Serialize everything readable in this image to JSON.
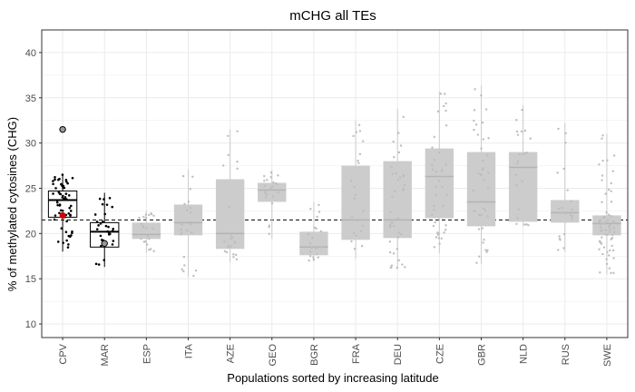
{
  "chart_data": {
    "type": "box",
    "title": "mCHG all TEs",
    "xlabel": "Populations sorted by increasing latitude",
    "ylabel": "% of methylated cytosines (CHG)",
    "ylim": [
      8.5,
      42.5
    ],
    "y_ticks": [
      10,
      15,
      20,
      25,
      30,
      35,
      40
    ],
    "grid": true,
    "reference_line": {
      "y": 21.5,
      "style": "dashed"
    },
    "categories": [
      "CPV",
      "MAR",
      "ESP",
      "ITA",
      "AZE",
      "GEO",
      "BGR",
      "FRA",
      "DEU",
      "CZE",
      "GBR",
      "NLD",
      "RUS",
      "SWE"
    ],
    "boxes": [
      {
        "category": "CPV",
        "q1": 21.8,
        "median": 23.7,
        "q3": 24.7,
        "whisker_low": 18.0,
        "whisker_high": 26.5,
        "highlight": true,
        "outliers": [
          31.5
        ]
      },
      {
        "category": "MAR",
        "q1": 18.5,
        "median": 20.2,
        "q3": 21.2,
        "whisker_low": 16.3,
        "whisker_high": 24.5,
        "highlight": true,
        "outliers": [
          18.9
        ]
      },
      {
        "category": "ESP",
        "q1": 19.4,
        "median": 19.9,
        "q3": 21.2,
        "whisker_low": 17.9,
        "whisker_high": 22.5,
        "highlight": false,
        "outliers": []
      },
      {
        "category": "ITA",
        "q1": 19.8,
        "median": 21.2,
        "q3": 23.2,
        "whisker_low": 15.2,
        "whisker_high": 27.1,
        "highlight": false,
        "outliers": []
      },
      {
        "category": "AZE",
        "q1": 18.3,
        "median": 20.0,
        "q3": 26.0,
        "whisker_low": 16.8,
        "whisker_high": 31.5,
        "highlight": false,
        "outliers": []
      },
      {
        "category": "GEO",
        "q1": 23.5,
        "median": 24.8,
        "q3": 25.6,
        "whisker_low": 19.4,
        "whisker_high": 27.0,
        "highlight": false,
        "outliers": []
      },
      {
        "category": "BGR",
        "q1": 17.6,
        "median": 18.5,
        "q3": 20.2,
        "whisker_low": 16.9,
        "whisker_high": 23.5,
        "highlight": false,
        "outliers": []
      },
      {
        "category": "FRA",
        "q1": 19.3,
        "median": 21.5,
        "q3": 27.5,
        "whisker_low": 17.2,
        "whisker_high": 32.5,
        "highlight": false,
        "outliers": []
      },
      {
        "category": "DEU",
        "q1": 19.5,
        "median": 21.5,
        "q3": 28.0,
        "whisker_low": 16.2,
        "whisker_high": 33.8,
        "highlight": false,
        "outliers": []
      },
      {
        "category": "CZE",
        "q1": 21.7,
        "median": 26.3,
        "q3": 29.4,
        "whisker_low": 17.8,
        "whisker_high": 35.7,
        "highlight": false,
        "outliers": []
      },
      {
        "category": "GBR",
        "q1": 20.8,
        "median": 23.5,
        "q3": 29.0,
        "whisker_low": 16.6,
        "whisker_high": 36.4,
        "highlight": false,
        "outliers": []
      },
      {
        "category": "NLD",
        "q1": 21.3,
        "median": 27.3,
        "q3": 29.0,
        "whisker_low": 20.8,
        "whisker_high": 34.2,
        "highlight": false,
        "outliers": []
      },
      {
        "category": "RUS",
        "q1": 21.2,
        "median": 22.3,
        "q3": 23.7,
        "whisker_low": 18.0,
        "whisker_high": 32.2,
        "highlight": false,
        "outliers": []
      },
      {
        "category": "SWE",
        "q1": 19.8,
        "median": 21.1,
        "q3": 22.0,
        "whisker_low": 15.5,
        "whisker_high": 31.0,
        "highlight": false,
        "outliers": []
      }
    ],
    "special_points": [
      {
        "category": "CPV",
        "y": 22.0,
        "color": "#cc0000"
      }
    ],
    "colors": {
      "highlight_point": "#000000",
      "background_box_fill": "#cccccc",
      "background_point": "#bdbdbd",
      "grid": "#ebebeb",
      "special_point": "#cc0000"
    }
  }
}
